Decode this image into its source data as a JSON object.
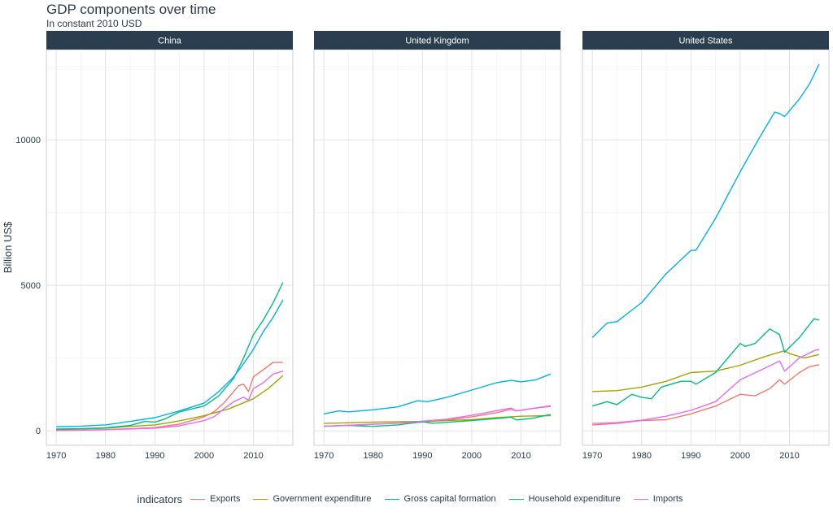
{
  "title": "GDP components over time",
  "subtitle": "In constant 2010 USD",
  "chart_data": {
    "type": "line",
    "ylabel": "Billion US$",
    "xlim": [
      1968,
      2018
    ],
    "ylim": [
      -500,
      13100
    ],
    "x_ticks": [
      1970,
      1980,
      1990,
      2000,
      2010
    ],
    "y_ticks": [
      0,
      5000,
      10000
    ],
    "y_tick_labels": [
      "0",
      "5000",
      "10000"
    ],
    "grid": true,
    "legend_position": "bottom",
    "legend_title": "indicators",
    "series_meta": [
      {
        "name": "Exports",
        "color": "#F8766D"
      },
      {
        "name": "Government expenditure",
        "color": "#A3A500"
      },
      {
        "name": "Gross capital formation",
        "color": "#00BF7D"
      },
      {
        "name": "Household expenditure",
        "color": "#00B0F6"
      },
      {
        "name": "Imports",
        "color": "#E76BF3"
      }
    ],
    "panels": [
      {
        "name": "China",
        "series": [
          {
            "name": "Exports",
            "x": [
              1970,
              1975,
              1980,
              1985,
              1990,
              1995,
              2000,
              2002,
              2004,
              2006,
              2007,
              2008,
              2009,
              2010,
              2012,
              2014,
              2016
            ],
            "values": [
              10,
              20,
              40,
              70,
              110,
              230,
              480,
              650,
              950,
              1350,
              1550,
              1600,
              1350,
              1850,
              2100,
              2350,
              2350
            ]
          },
          {
            "name": "Government expenditure",
            "x": [
              1970,
              1975,
              1980,
              1985,
              1990,
              1995,
              2000,
              2005,
              2010,
              2013,
              2016
            ],
            "values": [
              40,
              60,
              90,
              150,
              200,
              340,
              520,
              750,
              1100,
              1450,
              1900
            ]
          },
          {
            "name": "Gross capital formation",
            "x": [
              1970,
              1975,
              1980,
              1985,
              1988,
              1990,
              1992,
              1995,
              2000,
              2003,
              2006,
              2008,
              2010,
              2012,
              2014,
              2016
            ],
            "values": [
              60,
              70,
              100,
              180,
              320,
              300,
              400,
              650,
              850,
              1200,
              1800,
              2500,
              3300,
              3800,
              4400,
              5100
            ]
          },
          {
            "name": "Household expenditure",
            "x": [
              1970,
              1975,
              1980,
              1985,
              1990,
              1995,
              2000,
              2003,
              2006,
              2008,
              2010,
              2012,
              2014,
              2016
            ],
            "values": [
              140,
              160,
              200,
              320,
              450,
              680,
              950,
              1350,
              1850,
              2300,
              2800,
              3400,
              3900,
              4500
            ]
          },
          {
            "name": "Imports",
            "x": [
              1970,
              1975,
              1980,
              1985,
              1990,
              1995,
              2000,
              2002,
              2004,
              2006,
              2008,
              2009,
              2010,
              2012,
              2014,
              2016
            ],
            "values": [
              10,
              20,
              40,
              60,
              90,
              170,
              350,
              480,
              750,
              1000,
              1150,
              1050,
              1450,
              1650,
              1950,
              2050
            ]
          }
        ]
      },
      {
        "name": "United Kingdom",
        "series": [
          {
            "name": "Exports",
            "x": [
              1970,
              1980,
              1990,
              1995,
              2000,
              2005,
              2008,
              2009,
              2012,
              2016
            ],
            "values": [
              150,
              230,
              300,
              370,
              480,
              620,
              740,
              680,
              760,
              860
            ]
          },
          {
            "name": "Government expenditure",
            "x": [
              1970,
              1980,
              1990,
              2000,
              2005,
              2010,
              2016
            ],
            "values": [
              250,
              300,
              320,
              380,
              450,
              500,
              520
            ]
          },
          {
            "name": "Gross capital formation",
            "x": [
              1970,
              1975,
              1980,
              1985,
              1990,
              1992,
              1995,
              2000,
              2005,
              2008,
              2009,
              2012,
              2016
            ],
            "values": [
              160,
              180,
              150,
              200,
              310,
              260,
              290,
              350,
              420,
              470,
              370,
              420,
              560
            ]
          },
          {
            "name": "Household expenditure",
            "x": [
              1970,
              1973,
              1975,
              1980,
              1985,
              1989,
              1991,
              1995,
              2000,
              2005,
              2008,
              2010,
              2013,
              2016
            ],
            "values": [
              580,
              680,
              650,
              720,
              820,
              1030,
              1000,
              1150,
              1400,
              1650,
              1730,
              1680,
              1750,
              1950
            ]
          },
          {
            "name": "Imports",
            "x": [
              1970,
              1975,
              1980,
              1985,
              1990,
              1995,
              2000,
              2005,
              2008,
              2009,
              2012,
              2016
            ],
            "values": [
              160,
              180,
              220,
              260,
              330,
              400,
              530,
              690,
              780,
              680,
              760,
              840
            ]
          }
        ]
      },
      {
        "name": "United States",
        "series": [
          {
            "name": "Exports",
            "x": [
              1970,
              1975,
              1980,
              1985,
              1990,
              1995,
              2000,
              2003,
              2006,
              2008,
              2009,
              2012,
              2014,
              2016
            ],
            "values": [
              200,
              250,
              350,
              380,
              580,
              850,
              1250,
              1200,
              1450,
              1750,
              1600,
              2000,
              2200,
              2270
            ]
          },
          {
            "name": "Government expenditure",
            "x": [
              1970,
              1975,
              1980,
              1985,
              1990,
              1995,
              2000,
              2005,
              2009,
              2010,
              2013,
              2016
            ],
            "values": [
              1350,
              1380,
              1500,
              1700,
              2000,
              2050,
              2250,
              2550,
              2750,
              2650,
              2500,
              2620
            ]
          },
          {
            "name": "Gross capital formation",
            "x": [
              1970,
              1973,
              1975,
              1978,
              1980,
              1982,
              1984,
              1988,
              1990,
              1991,
              1995,
              2000,
              2001,
              2003,
              2006,
              2008,
              2009,
              2012,
              2015,
              2016
            ],
            "values": [
              850,
              1000,
              900,
              1250,
              1150,
              1100,
              1500,
              1700,
              1700,
              1600,
              2000,
              3000,
              2900,
              3000,
              3500,
              3300,
              2700,
              3200,
              3850,
              3800
            ]
          },
          {
            "name": "Household expenditure",
            "x": [
              1970,
              1973,
              1975,
              1980,
              1985,
              1990,
              1991,
              1995,
              2000,
              2004,
              2007,
              2008,
              2009,
              2012,
              2014,
              2016
            ],
            "values": [
              3200,
              3700,
              3750,
              4400,
              5400,
              6200,
              6200,
              7300,
              8900,
              10100,
              10950,
              10900,
              10800,
              11400,
              11900,
              12600
            ]
          },
          {
            "name": "Imports",
            "x": [
              1970,
              1975,
              1980,
              1985,
              1990,
              1995,
              2000,
              2005,
              2008,
              2009,
              2012,
              2015,
              2016
            ],
            "values": [
              250,
              280,
              360,
              500,
              700,
              1000,
              1750,
              2150,
              2400,
              2050,
              2500,
              2750,
              2800
            ]
          }
        ]
      }
    ]
  }
}
